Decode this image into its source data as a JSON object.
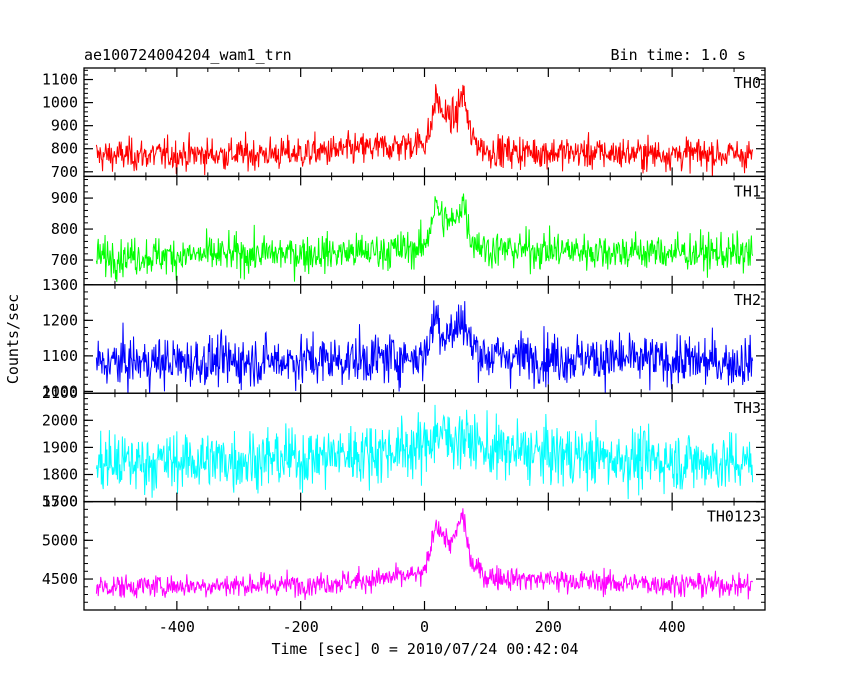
{
  "header": {
    "title": "ae100724004204_wam1_trn",
    "bin_time": "Bin time: 1.0 s"
  },
  "chart_data": {
    "type": "line",
    "xlabel": "Time [sec] 0 = 2010/07/24 00:42:04",
    "ylabel": "Counts/sec",
    "xlim": [
      -550,
      550
    ],
    "x_ticks": [
      -400,
      -200,
      0,
      200,
      400
    ],
    "x_range": [
      -530,
      530
    ],
    "bin_time_s": 1.0,
    "grid": false,
    "panels": [
      {
        "name": "TH0",
        "color": "#ff0000",
        "ylim": [
          680,
          1150
        ],
        "y_ticks": [
          700,
          800,
          900,
          1000,
          1100
        ],
        "y_tick_labels": [
          "700",
          "800",
          "900",
          "1000",
          "1100"
        ],
        "baseline": [
          [
            -530,
            770
          ],
          [
            -200,
            780
          ],
          [
            -100,
            800
          ],
          [
            -50,
            810
          ],
          [
            0,
            830
          ],
          [
            10,
            880
          ],
          [
            18,
            1030
          ],
          [
            30,
            950
          ],
          [
            50,
            930
          ],
          [
            62,
            1050
          ],
          [
            75,
            850
          ],
          [
            100,
            790
          ],
          [
            300,
            780
          ],
          [
            530,
            775
          ]
        ],
        "noise": 35
      },
      {
        "name": "TH1",
        "color": "#00ff00",
        "ylim": [
          620,
          970
        ],
        "y_ticks": [
          700,
          800,
          900
        ],
        "y_tick_labels": [
          "700",
          "800",
          "900"
        ],
        "baseline": [
          [
            -530,
            710
          ],
          [
            -100,
            725
          ],
          [
            0,
            740
          ],
          [
            10,
            820
          ],
          [
            18,
            880
          ],
          [
            30,
            830
          ],
          [
            50,
            820
          ],
          [
            62,
            900
          ],
          [
            75,
            770
          ],
          [
            100,
            735
          ],
          [
            530,
            720
          ]
        ],
        "noise": 30
      },
      {
        "name": "TH2",
        "color": "#0000ff",
        "ylim": [
          995,
          1300
        ],
        "y_ticks": [
          1000,
          1100,
          1200,
          1300
        ],
        "y_tick_labels": [
          "1000",
          "1100",
          "1200",
          "1300"
        ],
        "baseline": [
          [
            -530,
            1080
          ],
          [
            -100,
            1090
          ],
          [
            0,
            1100
          ],
          [
            10,
            1160
          ],
          [
            18,
            1220
          ],
          [
            30,
            1160
          ],
          [
            50,
            1170
          ],
          [
            62,
            1210
          ],
          [
            75,
            1130
          ],
          [
            100,
            1100
          ],
          [
            530,
            1080
          ]
        ],
        "noise": 35
      },
      {
        "name": "TH3",
        "color": "#00ffff",
        "ylim": [
          1700,
          2100
        ],
        "y_ticks": [
          1700,
          1800,
          1900,
          2000,
          2100
        ],
        "y_tick_labels": [
          "1700",
          "1800",
          "1900",
          "2000",
          "2100"
        ],
        "baseline": [
          [
            -530,
            1840
          ],
          [
            -200,
            1860
          ],
          [
            -100,
            1880
          ],
          [
            0,
            1900
          ],
          [
            18,
            1960
          ],
          [
            40,
            1930
          ],
          [
            62,
            1940
          ],
          [
            100,
            1890
          ],
          [
            300,
            1860
          ],
          [
            530,
            1840
          ]
        ],
        "noise": 55
      },
      {
        "name": "TH0123",
        "color": "#ff00ff",
        "ylim": [
          4100,
          5500
        ],
        "y_ticks": [
          4500,
          5000,
          5500
        ],
        "y_tick_labels": [
          "4500",
          "5000",
          "5500"
        ],
        "baseline": [
          [
            -530,
            4400
          ],
          [
            -200,
            4430
          ],
          [
            -100,
            4480
          ],
          [
            0,
            4560
          ],
          [
            10,
            4900
          ],
          [
            18,
            5250
          ],
          [
            30,
            5050
          ],
          [
            45,
            4950
          ],
          [
            62,
            5350
          ],
          [
            75,
            4700
          ],
          [
            100,
            4530
          ],
          [
            300,
            4450
          ],
          [
            530,
            4420
          ]
        ],
        "noise": 75
      }
    ]
  }
}
